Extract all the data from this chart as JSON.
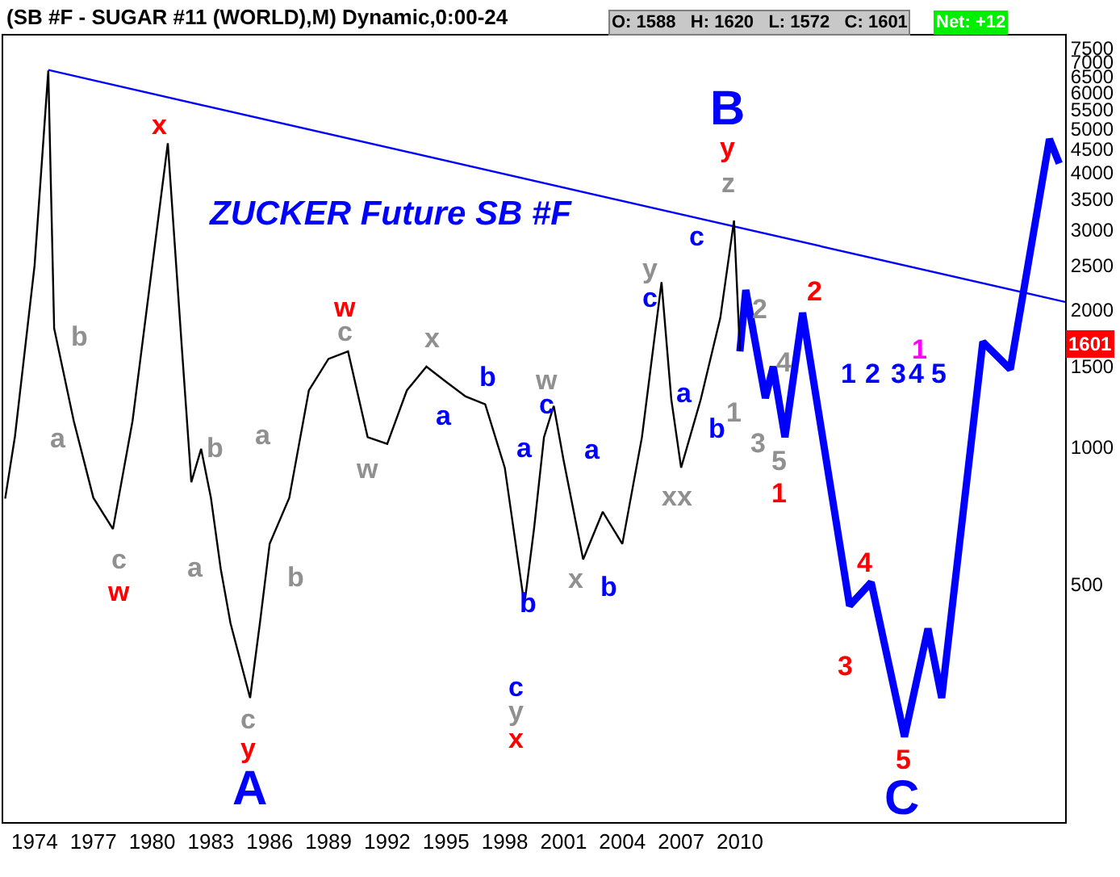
{
  "chart_data": {
    "type": "line",
    "title": "(SB #F - SUGAR #11 (WORLD),M) Dynamic,0:00-24",
    "subtitle": "ZUCKER Future SB #F",
    "log": "y",
    "marker": "none",
    "line_style": "solid",
    "xlim": [
      1972.4,
      2026.6
    ],
    "xticks": [
      1974,
      1977,
      1980,
      1983,
      1986,
      1989,
      1992,
      1995,
      1998,
      2001,
      2004,
      2007,
      2010
    ],
    "ylim": [
      150,
      8000
    ],
    "yticks": [
      500,
      1000,
      1500,
      2000,
      2500,
      3000,
      3500,
      4000,
      4500,
      5000,
      5500,
      6000,
      6500,
      7000,
      7500
    ],
    "series": [
      {
        "color": "#000000",
        "x": [
          1972.5,
          1973,
          1974,
          1974.7,
          1975,
          1976,
          1977,
          1978,
          1979,
          1980.8,
          1981.5,
          1982,
          1982.5,
          1983,
          1983.5,
          1984,
          1985,
          1985.5,
          1986,
          1987,
          1988,
          1989,
          1990,
          1991,
          1992,
          1993,
          1994,
          1995,
          1996,
          1997,
          1998,
          1999,
          1999.5,
          2000,
          2000.5,
          2001,
          2002,
          2003,
          2004,
          2005,
          2006,
          2006.5,
          2007,
          2008,
          2009,
          2009.7,
          2010
        ],
        "values": [
          770,
          1055,
          2500,
          6700,
          1820,
          1140,
          773,
          660,
          1140,
          4640,
          1690,
          836,
          990,
          773,
          540,
          410,
          281,
          410,
          613,
          773,
          1330,
          1560,
          1620,
          1050,
          1015,
          1330,
          1500,
          1390,
          1290,
          1240,
          900,
          450,
          665,
          1050,
          1230,
          935,
          566,
          720,
          612,
          1050,
          2300,
          1270,
          900,
          1270,
          1920,
          3140,
          1620
        ]
      },
      {
        "color": "#0000ff",
        "x": [
          2010,
          2010.3,
          2011.3,
          2011.7,
          2012.3,
          2013.2,
          2015.6,
          2016.7,
          2018.4,
          2019.6,
          2020.3,
          2022.4,
          2023.8,
          2025.8,
          2026.3
        ],
        "values": [
          1620,
          2210,
          1280,
          1500,
          1050,
          1970,
          448,
          504,
          231,
          399,
          281,
          1700,
          1480,
          4740,
          4190
        ]
      },
      {
        "color": "#0000ff",
        "x": [
          1974.7,
          2026.6
        ],
        "values": [
          6720,
          2080
        ]
      }
    ],
    "annotations": [
      "O: 1588   H: 1620   L: 1572   C: 1601",
      "Net: +12",
      "1601",
      "x",
      "b",
      "a",
      "c",
      "w",
      "b",
      "a",
      "a",
      "b",
      "c",
      "y",
      "A",
      "w",
      "c",
      "w",
      "x",
      "a",
      "b",
      "a",
      "b",
      "c",
      "y",
      "x",
      "w",
      "c",
      "x",
      "a",
      "b",
      "y",
      "c",
      "a",
      "xx",
      "b",
      "c",
      "z",
      "y",
      "B",
      "2",
      "1",
      "3",
      "4",
      "5",
      "1",
      "2",
      "1",
      "2",
      "3",
      "4",
      "5",
      "1",
      "3",
      "4",
      "5",
      "C"
    ]
  }
}
